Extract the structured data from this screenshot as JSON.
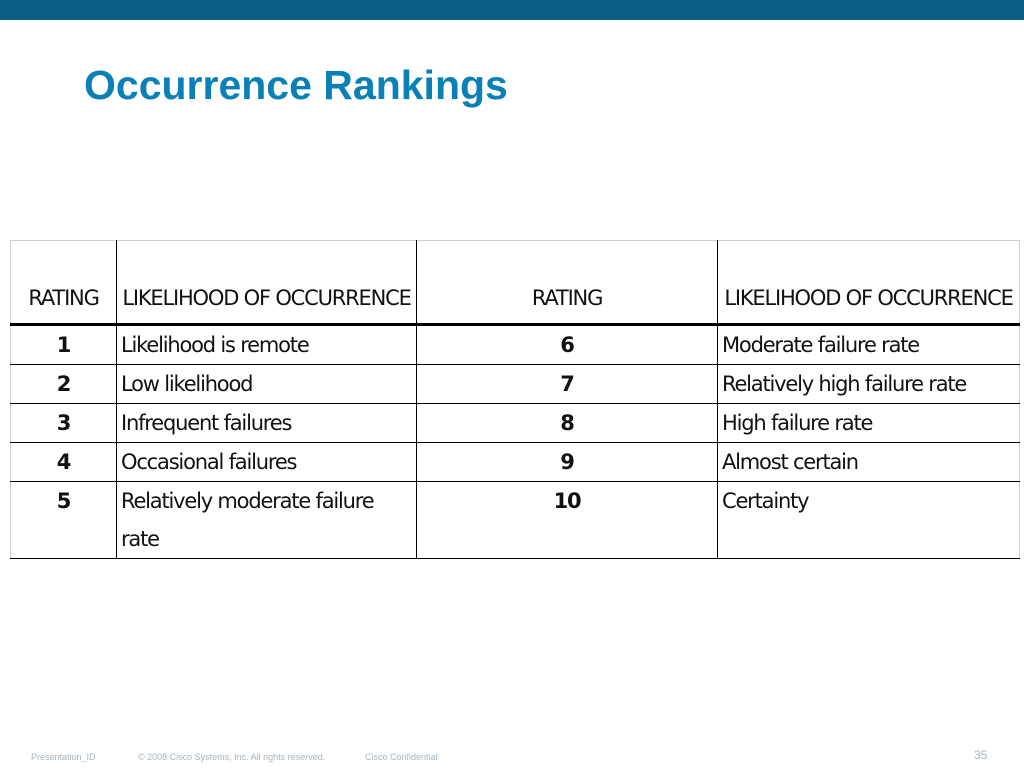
{
  "header": {
    "title": "Occurrence Rankings"
  },
  "table": {
    "columns": [
      "RATING",
      "LIKELIHOOD OF OCCURRENCE",
      "RATING",
      "LIKELIHOOD OF OCCURRENCE"
    ],
    "rows": [
      [
        1,
        "Likelihood is remote",
        6,
        "Moderate failure rate"
      ],
      [
        2,
        "Low likelihood",
        7,
        "Relatively high failure rate"
      ],
      [
        3,
        "Infrequent failures",
        8,
        "High failure rate"
      ],
      [
        4,
        "Occasional failures",
        9,
        "Almost certain"
      ],
      [
        5,
        "Relatively moderate failure rate",
        10,
        "Certainty"
      ]
    ]
  },
  "footer": {
    "presentation_id": "Presentation_ID",
    "copyright": "© 2008 Cisco Systems, Inc. All rights reserved.",
    "confidential": "Cisco Confidential",
    "page_number": 35
  }
}
